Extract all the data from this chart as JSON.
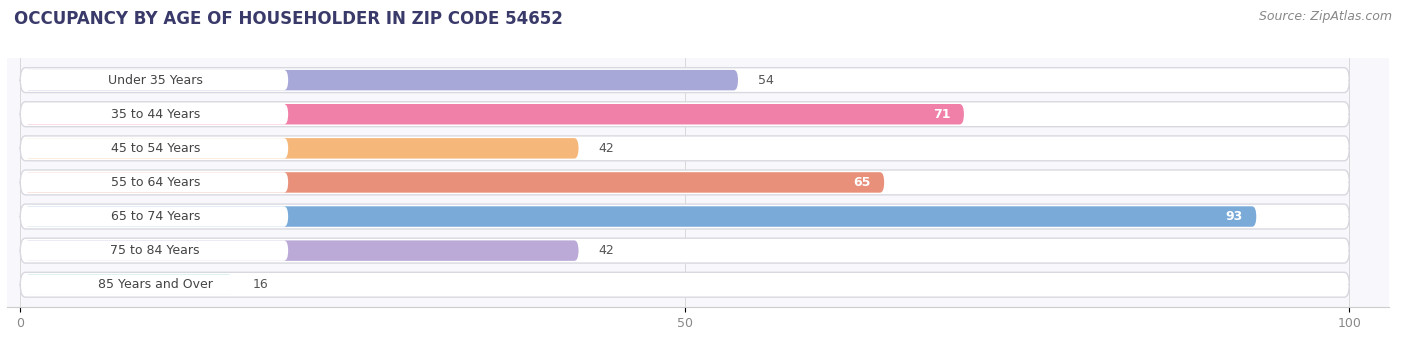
{
  "title": "OCCUPANCY BY AGE OF HOUSEHOLDER IN ZIP CODE 54652",
  "source": "Source: ZipAtlas.com",
  "categories": [
    "Under 35 Years",
    "35 to 44 Years",
    "45 to 54 Years",
    "55 to 64 Years",
    "65 to 74 Years",
    "75 to 84 Years",
    "85 Years and Over"
  ],
  "values": [
    54,
    71,
    42,
    65,
    93,
    42,
    16
  ],
  "bar_colors": [
    "#a8a8d8",
    "#f080a8",
    "#f5b87a",
    "#e8907a",
    "#7aaad8",
    "#bbaad8",
    "#80cece"
  ],
  "bar_bg_color": "#ffffff",
  "bar_border_color": "#d8d8e0",
  "label_pill_color": "#ffffff",
  "xlim": [
    0,
    100
  ],
  "title_fontsize": 12,
  "source_fontsize": 9,
  "label_fontsize": 9,
  "value_fontsize": 9,
  "tick_fontsize": 9,
  "xticks": [
    0,
    50,
    100
  ],
  "background_color": "#ffffff",
  "plot_bg_color": "#f8f8fc"
}
